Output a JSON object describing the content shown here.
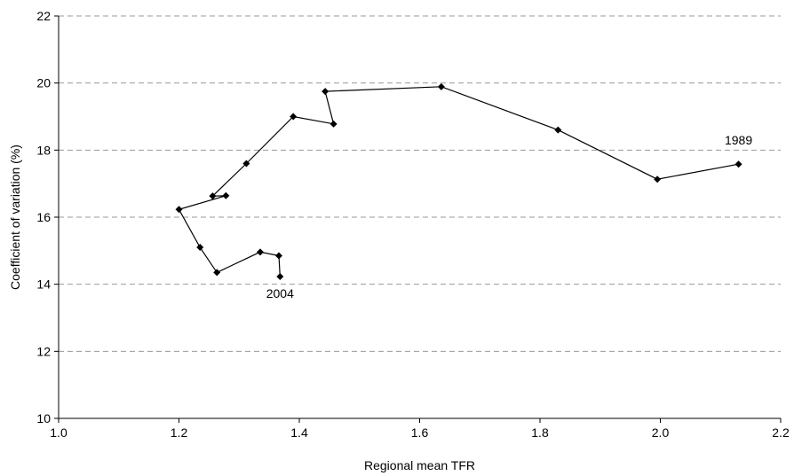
{
  "chart_data": {
    "type": "line",
    "title": "",
    "xlabel": "Regional mean TFR",
    "ylabel": "Coefficient of variation (%)",
    "xlim": [
      1.0,
      2.2
    ],
    "ylim": [
      10,
      22
    ],
    "x_ticks": [
      "1.0",
      "1.2",
      "1.4",
      "1.6",
      "1.8",
      "2.0",
      "2.2"
    ],
    "y_ticks": [
      "10",
      "12",
      "14",
      "16",
      "18",
      "20",
      "22"
    ],
    "grid": "horizontal dashed",
    "legend": "none",
    "series": [
      {
        "color": "#000000",
        "marker": "diamond",
        "points": [
          {
            "x": 2.13,
            "y": 17.58
          },
          {
            "x": 1.995,
            "y": 17.13
          },
          {
            "x": 1.83,
            "y": 18.6
          },
          {
            "x": 1.636,
            "y": 19.89
          },
          {
            "x": 1.443,
            "y": 19.75
          },
          {
            "x": 1.457,
            "y": 18.78
          },
          {
            "x": 1.39,
            "y": 19.0
          },
          {
            "x": 1.312,
            "y": 17.6
          },
          {
            "x": 1.256,
            "y": 16.63
          },
          {
            "x": 1.278,
            "y": 16.64
          },
          {
            "x": 1.2,
            "y": 16.23
          },
          {
            "x": 1.235,
            "y": 15.1
          },
          {
            "x": 1.263,
            "y": 14.35
          },
          {
            "x": 1.335,
            "y": 14.96
          },
          {
            "x": 1.366,
            "y": 14.85
          },
          {
            "x": 1.368,
            "y": 14.23
          }
        ]
      }
    ],
    "annotations": [
      {
        "text": "1989",
        "x": 2.13,
        "y": 17.58,
        "anchor": "above"
      },
      {
        "text": "2004",
        "x": 1.368,
        "y": 14.23,
        "anchor": "below"
      }
    ]
  }
}
